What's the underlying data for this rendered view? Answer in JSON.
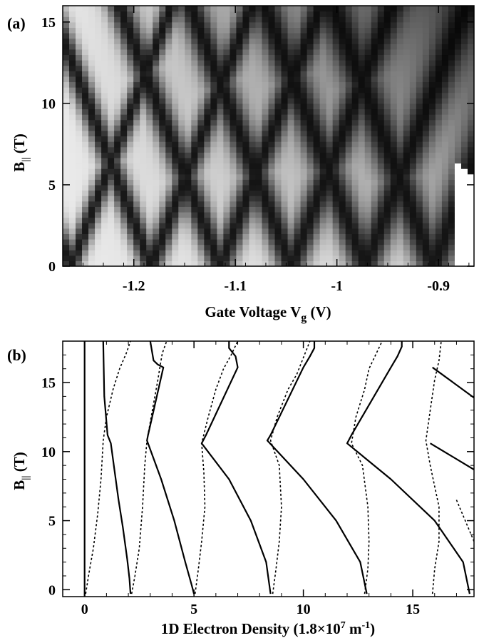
{
  "chart_data": [
    {
      "type": "heatmap",
      "panel_label": "(a)",
      "colormap": "grayscale (white = low, black = high)",
      "ylabel": {
        "main": "B",
        "sub": "||",
        "rest": " (T)"
      },
      "xlabel": {
        "main": "Gate Voltage V",
        "sub": "g",
        "rest": " (V)"
      },
      "xlim": [
        -1.27,
        -0.865
      ],
      "ylim": [
        0,
        16
      ],
      "x_ticks": [
        -1.2,
        -1.1,
        -1,
        -0.9
      ],
      "x_tick_labels": [
        "-1.2",
        "-1.1",
        "-1",
        "-0.9"
      ],
      "y_ticks": [
        0,
        5,
        10,
        15
      ],
      "y_tick_labels": [
        "0",
        "5",
        "10",
        "15"
      ],
      "features": {
        "zero_field_dark_lines_Vg": [
          -1.262,
          -1.183,
          -1.115,
          -1.045,
          -0.972,
          -0.905
        ],
        "crossing_points": [
          {
            "Vg": -1.212,
            "B": 11.0
          },
          {
            "Vg": -1.155,
            "B": 10.0
          },
          {
            "Vg": -1.098,
            "B": 8.8
          },
          {
            "Vg": -1.033,
            "B": 8.3
          },
          {
            "Vg": -0.965,
            "B": 8.0
          },
          {
            "Vg": -0.905,
            "B": 7.5
          }
        ]
      }
    },
    {
      "type": "line",
      "panel_label": "(b)",
      "ylabel": {
        "main": "B",
        "sub": "||",
        "rest": " (T)"
      },
      "xlabel": {
        "main": "1D Electron Density (1.8×10",
        "sup1": "7",
        "mid": " m",
        "sup2": "-1",
        "rest": ")"
      },
      "xlim": [
        -1,
        17.8
      ],
      "ylim": [
        -0.5,
        18
      ],
      "x_ticks": [
        0,
        5,
        10,
        15
      ],
      "x_tick_labels": [
        "0",
        "5",
        "10",
        "15"
      ],
      "y_ticks": [
        0,
        5,
        10,
        15
      ],
      "y_tick_labels": [
        "0",
        "5",
        "10",
        "15"
      ],
      "series": [
        {
          "style": "solid",
          "x": [
            0.0,
            0.0
          ],
          "y": [
            -0.5,
            18
          ]
        },
        {
          "style": "solid",
          "x": [
            0.85,
            0.9,
            1.05,
            1.2,
            1.38,
            1.55,
            1.75,
            1.95,
            2.05,
            2.1
          ],
          "y": [
            18,
            14,
            11.2,
            10.6,
            8.5,
            6.5,
            4.5,
            2.2,
            0.8,
            -0.3
          ]
        },
        {
          "style": "dotted",
          "x": [
            0.05,
            0.2,
            0.4,
            0.6,
            0.75,
            0.85,
            1.0,
            1.3,
            1.6,
            1.9,
            2.1
          ],
          "y": [
            -0.3,
            1.2,
            3.0,
            5.5,
            8.0,
            10.8,
            12.5,
            14.5,
            16.0,
            17.1,
            18
          ]
        },
        {
          "style": "solid",
          "x": [
            3.0,
            3.15,
            3.35,
            3.6,
            2.9,
            2.85,
            3.5,
            4.1,
            4.6,
            4.9,
            5.0
          ],
          "y": [
            18,
            16.6,
            16.3,
            16.1,
            11.2,
            10.8,
            8.0,
            5.0,
            2.0,
            0.3,
            -0.3
          ]
        },
        {
          "style": "dotted",
          "x": [
            2.15,
            2.3,
            2.5,
            2.65,
            2.75,
            2.85,
            3.1,
            3.35,
            3.45,
            3.55,
            3.75
          ],
          "y": [
            -0.3,
            1.0,
            3.0,
            6.0,
            9.0,
            10.8,
            13.0,
            15.2,
            16.2,
            17.1,
            18
          ]
        },
        {
          "style": "solid",
          "x": [
            6.6,
            6.6,
            6.9,
            7.0,
            5.55,
            5.35,
            6.6,
            7.6,
            8.3,
            8.5
          ],
          "y": [
            18,
            17.5,
            16.9,
            16.1,
            11.2,
            10.6,
            8.0,
            5.0,
            2.0,
            -0.3
          ]
        },
        {
          "style": "dotted",
          "x": [
            5.05,
            5.2,
            5.35,
            5.5,
            5.45,
            5.35,
            5.65,
            6.0,
            6.35,
            6.7,
            7.0
          ],
          "y": [
            -0.3,
            1.5,
            3.5,
            6.0,
            8.5,
            10.6,
            12.5,
            14.5,
            16.0,
            17.0,
            18
          ]
        },
        {
          "style": "solid",
          "x": [
            10.5,
            10.5,
            10.3,
            10.0,
            8.5,
            8.35,
            10.0,
            11.5,
            12.6,
            12.9
          ],
          "y": [
            18,
            17.5,
            16.9,
            16.1,
            11.2,
            10.8,
            8.0,
            5.0,
            2.0,
            -0.3
          ]
        },
        {
          "style": "dotted",
          "x": [
            8.6,
            8.75,
            8.9,
            9.0,
            8.9,
            8.5,
            8.8,
            9.3,
            9.7,
            10.0,
            10.3
          ],
          "y": [
            -0.3,
            1.5,
            3.5,
            6.0,
            9.0,
            10.8,
            12.5,
            14.5,
            15.6,
            16.8,
            18
          ]
        },
        {
          "style": "solid",
          "x": [
            14.5,
            14.5,
            14.3,
            14.0,
            12.2,
            12.0,
            14.0,
            16.0,
            17.3,
            17.6
          ],
          "y": [
            18,
            17.6,
            16.9,
            16.1,
            11.2,
            10.6,
            8.0,
            5.0,
            2.0,
            -0.3
          ]
        },
        {
          "style": "dotted",
          "x": [
            12.8,
            12.95,
            13.0,
            12.95,
            12.7,
            12.2,
            12.4,
            12.8,
            13.0,
            13.3,
            13.6
          ],
          "y": [
            -0.3,
            1.5,
            3.5,
            6.0,
            9.0,
            10.6,
            12.5,
            14.5,
            16.0,
            17.0,
            18
          ]
        },
        {
          "style": "solid",
          "x": [
            15.9,
            17.8
          ],
          "y": [
            16.1,
            13.9
          ]
        },
        {
          "style": "solid",
          "x": [
            15.8,
            17.8
          ],
          "y": [
            10.6,
            8.7
          ]
        },
        {
          "style": "dotted",
          "x": [
            15.9,
            16.0,
            16.2,
            16.2,
            15.8,
            15.6,
            15.8,
            16.0,
            16.2,
            16.3
          ],
          "y": [
            -0.3,
            1.5,
            3.5,
            6.0,
            9.0,
            10.8,
            13.0,
            15.2,
            16.6,
            18
          ]
        },
        {
          "style": "dotted",
          "x": [
            17.0,
            17.4,
            17.8
          ],
          "y": [
            6.5,
            5.0,
            3.5
          ]
        }
      ]
    }
  ]
}
